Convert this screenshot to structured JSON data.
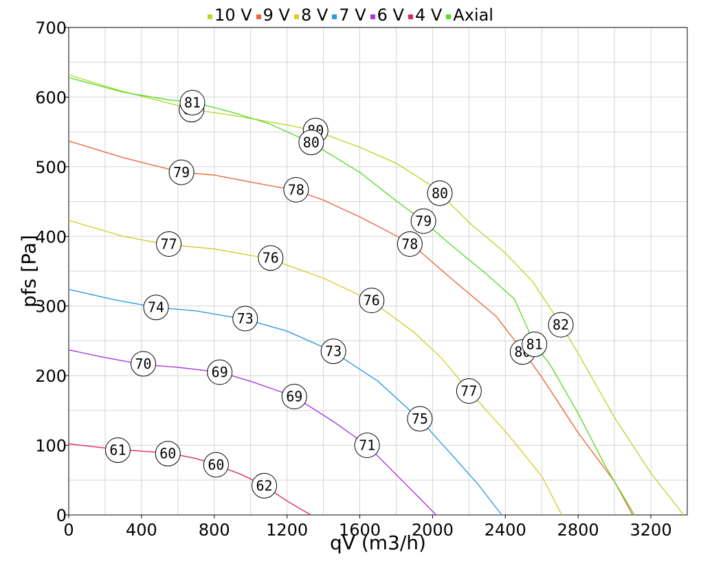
{
  "chart_data": {
    "type": "line",
    "title": "",
    "xlabel": "qV (m3/h)",
    "ylabel": "pfs [Pa]",
    "xlim": [
      0,
      3400
    ],
    "ylim": [
      0,
      700
    ],
    "x_ticks": [
      0,
      400,
      800,
      1200,
      1600,
      2000,
      2400,
      2800,
      3200
    ],
    "y_ticks": [
      0,
      100,
      200,
      300,
      400,
      500,
      600,
      700
    ],
    "grid": true,
    "legend_position": "top-center",
    "series": [
      {
        "name": "10 V",
        "color": "#b5d92c",
        "points": [
          [
            0,
            632
          ],
          [
            300,
            608
          ],
          [
            600,
            588
          ],
          [
            680,
            582
          ],
          [
            900,
            574
          ],
          [
            1200,
            560
          ],
          [
            1350,
            552
          ],
          [
            1600,
            528
          ],
          [
            1800,
            505
          ],
          [
            2000,
            472
          ],
          [
            2040,
            462
          ],
          [
            2200,
            420
          ],
          [
            2400,
            376
          ],
          [
            2550,
            335
          ],
          [
            2700,
            276
          ],
          [
            2800,
            232
          ],
          [
            3000,
            140
          ],
          [
            3200,
            60
          ],
          [
            3380,
            0
          ]
        ],
        "labels": [
          {
            "x": 675,
            "y": 582,
            "text": "80"
          },
          {
            "x": 1357,
            "y": 552,
            "text": "80"
          },
          {
            "x": 2040,
            "y": 462,
            "text": "80"
          },
          {
            "x": 2705,
            "y": 273,
            "text": "82"
          }
        ]
      },
      {
        "name": "9 V",
        "color": "#e8683a",
        "points": [
          [
            0,
            537
          ],
          [
            300,
            513
          ],
          [
            620,
            492
          ],
          [
            800,
            488
          ],
          [
            1000,
            478
          ],
          [
            1250,
            466
          ],
          [
            1400,
            452
          ],
          [
            1600,
            428
          ],
          [
            1880,
            390
          ],
          [
            2100,
            340
          ],
          [
            2350,
            285
          ],
          [
            2500,
            234
          ],
          [
            2600,
            198
          ],
          [
            2800,
            118
          ],
          [
            3000,
            48
          ],
          [
            3100,
            0
          ]
        ],
        "labels": [
          {
            "x": 620,
            "y": 492,
            "text": "79"
          },
          {
            "x": 1250,
            "y": 467,
            "text": "78"
          },
          {
            "x": 1875,
            "y": 389,
            "text": "78"
          },
          {
            "x": 2495,
            "y": 234,
            "text": "80"
          }
        ]
      },
      {
        "name": "8 V",
        "color": "#d9cc2c",
        "points": [
          [
            0,
            423
          ],
          [
            300,
            400
          ],
          [
            550,
            388
          ],
          [
            800,
            382
          ],
          [
            1100,
            368
          ],
          [
            1400,
            340
          ],
          [
            1660,
            308
          ],
          [
            1900,
            262
          ],
          [
            2050,
            225
          ],
          [
            2200,
            178
          ],
          [
            2400,
            120
          ],
          [
            2600,
            56
          ],
          [
            2710,
            0
          ]
        ],
        "labels": [
          {
            "x": 550,
            "y": 389,
            "text": "77"
          },
          {
            "x": 1110,
            "y": 369,
            "text": "76"
          },
          {
            "x": 1665,
            "y": 308,
            "text": "76"
          },
          {
            "x": 2200,
            "y": 178,
            "text": "77"
          }
        ]
      },
      {
        "name": "7 V",
        "color": "#2a9be0",
        "points": [
          [
            0,
            324
          ],
          [
            250,
            309
          ],
          [
            480,
            298
          ],
          [
            700,
            293
          ],
          [
            970,
            281
          ],
          [
            1200,
            264
          ],
          [
            1450,
            235
          ],
          [
            1700,
            192
          ],
          [
            1930,
            137
          ],
          [
            2100,
            88
          ],
          [
            2250,
            44
          ],
          [
            2380,
            0
          ]
        ],
        "labels": [
          {
            "x": 480,
            "y": 298,
            "text": "74"
          },
          {
            "x": 970,
            "y": 282,
            "text": "73"
          },
          {
            "x": 1455,
            "y": 235,
            "text": "73"
          },
          {
            "x": 1930,
            "y": 138,
            "text": "75"
          }
        ]
      },
      {
        "name": "6 V",
        "color": "#a63ae0",
        "points": [
          [
            0,
            237
          ],
          [
            200,
            226
          ],
          [
            410,
            216
          ],
          [
            600,
            212
          ],
          [
            830,
            205
          ],
          [
            1000,
            192
          ],
          [
            1240,
            170
          ],
          [
            1450,
            135
          ],
          [
            1640,
            100
          ],
          [
            1800,
            58
          ],
          [
            2020,
            0
          ]
        ],
        "labels": [
          {
            "x": 410,
            "y": 217,
            "text": "70"
          },
          {
            "x": 830,
            "y": 205,
            "text": "69"
          },
          {
            "x": 1240,
            "y": 170,
            "text": "69"
          },
          {
            "x": 1640,
            "y": 100,
            "text": "71"
          }
        ]
      },
      {
        "name": "4 V",
        "color": "#e02a5a",
        "points": [
          [
            0,
            102
          ],
          [
            270,
            94
          ],
          [
            545,
            89
          ],
          [
            700,
            81
          ],
          [
            810,
            72
          ],
          [
            950,
            58
          ],
          [
            1075,
            42
          ],
          [
            1200,
            20
          ],
          [
            1330,
            0
          ]
        ],
        "labels": [
          {
            "x": 270,
            "y": 93,
            "text": "61"
          },
          {
            "x": 545,
            "y": 88,
            "text": "60"
          },
          {
            "x": 810,
            "y": 72,
            "text": "60"
          },
          {
            "x": 1075,
            "y": 42,
            "text": "62"
          }
        ]
      },
      {
        "name": "Axial",
        "color": "#5adc2a",
        "points": [
          [
            0,
            628
          ],
          [
            300,
            607
          ],
          [
            550,
            596
          ],
          [
            680,
            593
          ],
          [
            900,
            578
          ],
          [
            1100,
            562
          ],
          [
            1330,
            535
          ],
          [
            1600,
            492
          ],
          [
            1800,
            451
          ],
          [
            1950,
            422
          ],
          [
            2100,
            388
          ],
          [
            2300,
            345
          ],
          [
            2450,
            310
          ],
          [
            2560,
            246
          ],
          [
            2650,
            214
          ],
          [
            2800,
            146
          ],
          [
            2950,
            70
          ],
          [
            3110,
            0
          ]
        ],
        "labels": [
          {
            "x": 680,
            "y": 592,
            "text": "81"
          },
          {
            "x": 1333,
            "y": 535,
            "text": "80"
          },
          {
            "x": 1950,
            "y": 422,
            "text": "79"
          },
          {
            "x": 2560,
            "y": 245,
            "text": "81"
          }
        ]
      }
    ]
  }
}
